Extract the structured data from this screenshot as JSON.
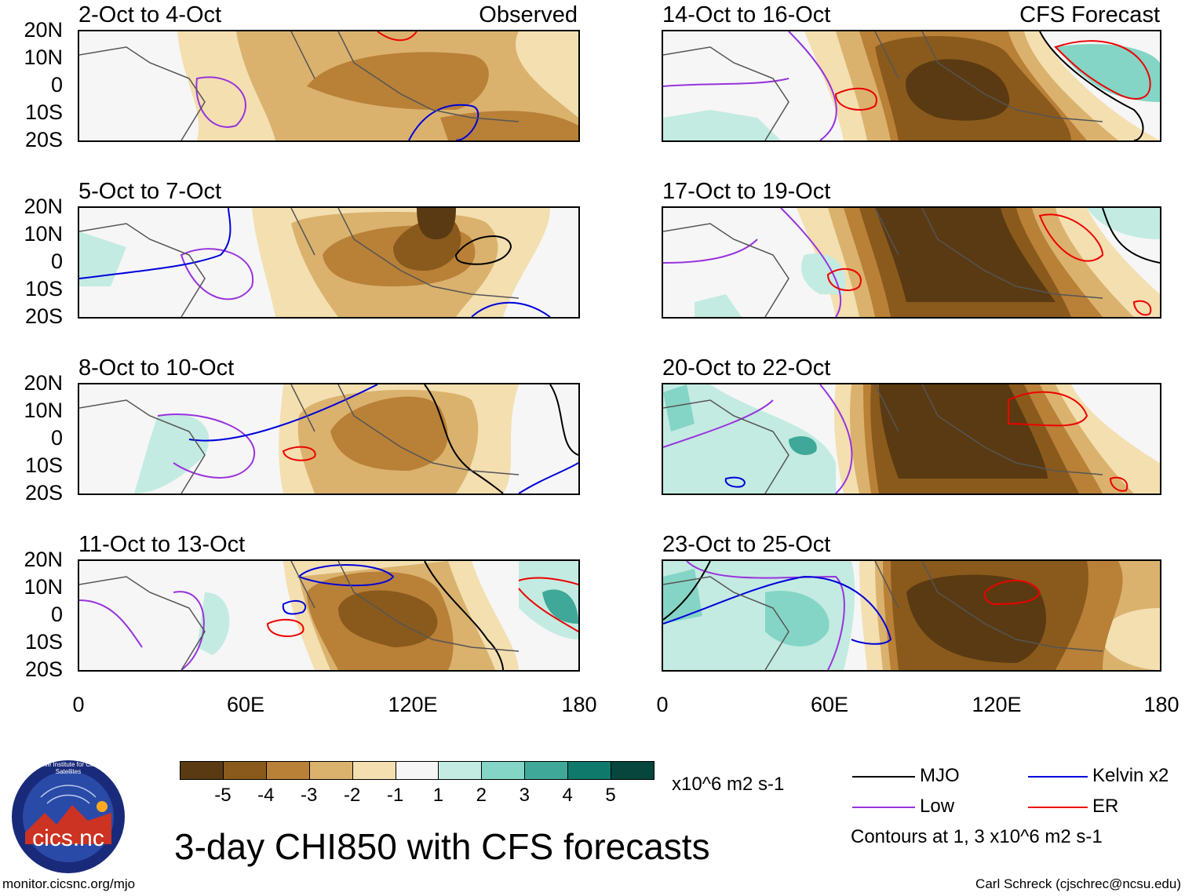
{
  "colors": {
    "neg5": "#5a3a12",
    "neg4": "#8a5a1c",
    "neg3": "#b98038",
    "neg2": "#dab26e",
    "neg1": "#f3dfb0",
    "zero": "#f6f6f6",
    "pos1": "#c3ebe1",
    "pos2": "#84d5c5",
    "pos3": "#3fa898",
    "pos4": "#0f7a6c",
    "pos5": "#06463c",
    "mjo": "#000000",
    "kelvin": "#0000dd",
    "low": "#9933dd",
    "er": "#ee0000",
    "land": "#555555"
  },
  "panels": [
    {
      "title": "2-Oct to 4-Oct",
      "label": "Observed"
    },
    {
      "title": "14-Oct to 16-Oct",
      "label": "CFS Forecast"
    },
    {
      "title": "5-Oct to 7-Oct",
      "label": ""
    },
    {
      "title": "17-Oct to 19-Oct",
      "label": ""
    },
    {
      "title": "8-Oct to 10-Oct",
      "label": ""
    },
    {
      "title": "20-Oct to 22-Oct",
      "label": ""
    },
    {
      "title": "11-Oct to 13-Oct",
      "label": ""
    },
    {
      "title": "23-Oct to 25-Oct",
      "label": ""
    }
  ],
  "y_ticks": [
    "20N",
    "10N",
    "0",
    "10S",
    "20S"
  ],
  "x_ticks": [
    "0",
    "60E",
    "120E",
    "180"
  ],
  "colorbar": {
    "labels": [
      "-5",
      "-4",
      "-3",
      "-2",
      "-1",
      "1",
      "2",
      "3",
      "4",
      "5"
    ],
    "units": "x10^6 m2 s-1"
  },
  "legend": {
    "mjo": "MJO",
    "kelvin": "Kelvin x2",
    "low": "Low",
    "er": "ER",
    "contours_note": "Contours at 1, 3 x10^6 m2 s-1"
  },
  "main_title": "3-day CHI850 with CFS forecasts",
  "logo_text": "cics.nc",
  "logo_ring_text": "Cooperative Institute for Climate and Satellites",
  "footer_left": "monitor.cicsnc.org/mjo",
  "footer_right": "Carl Schreck (cjschrec@ncsu.edu)"
}
